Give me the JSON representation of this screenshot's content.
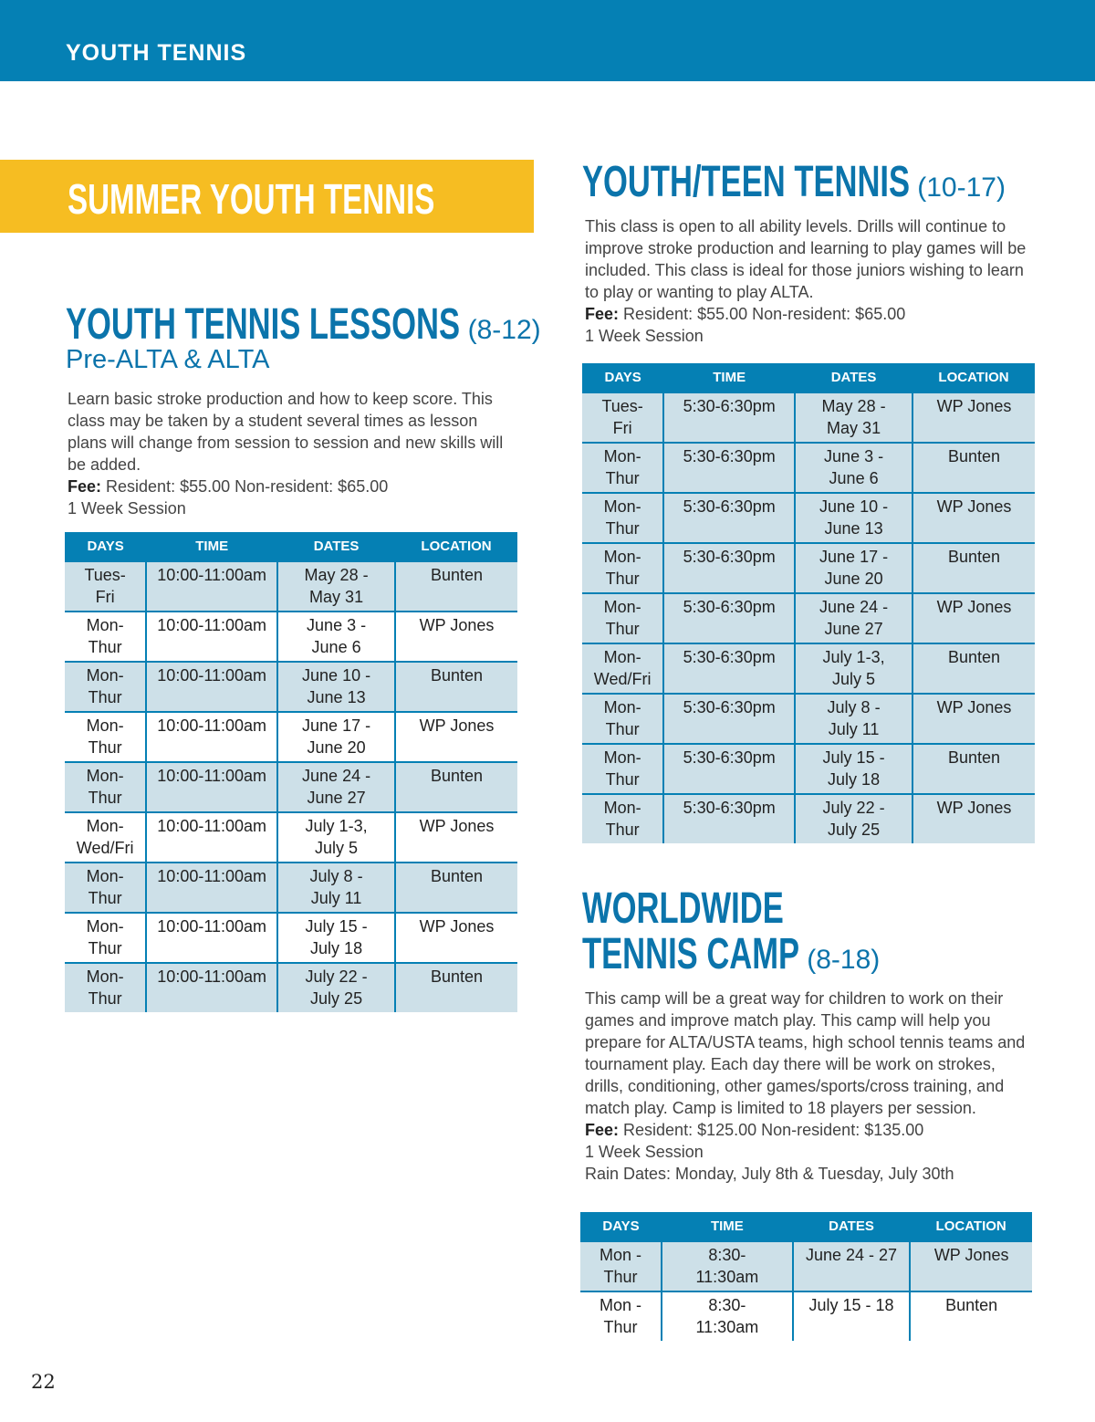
{
  "header": {
    "title": "YOUTH TENNIS"
  },
  "banner": {
    "title": "SUMMER YOUTH TENNIS"
  },
  "headers": [
    "DAYS",
    "TIME",
    "DATES",
    "LOCATION"
  ],
  "lessons": {
    "title": "YOUTH TENNIS LESSONS",
    "age": "(8-12)",
    "subtitle": "Pre-ALTA & ALTA",
    "description": "Learn basic stroke production and how to keep score. This class may be taken by a student several times as lesson plans will change from session to session and new skills will be added.",
    "fee_label": "Fee:",
    "fee": "Resident: $55.00 Non-resident: $65.00",
    "session": "1 Week Session",
    "rows": [
      [
        "Tues-\nFri",
        "10:00-11:00am",
        "May 28 -\nMay 31",
        "Bunten"
      ],
      [
        "Mon-\nThur",
        "10:00-11:00am",
        "June 3 -\nJune 6",
        "WP Jones"
      ],
      [
        "Mon-\nThur",
        "10:00-11:00am",
        "June 10 -\nJune 13",
        "Bunten"
      ],
      [
        "Mon-\nThur",
        "10:00-11:00am",
        "June 17 -\nJune 20",
        "WP Jones"
      ],
      [
        "Mon-\nThur",
        "10:00-11:00am",
        "June 24 -\nJune 27",
        "Bunten"
      ],
      [
        "Mon-\nWed/Fri",
        "10:00-11:00am",
        "July 1-3,\nJuly 5",
        "WP Jones"
      ],
      [
        "Mon-\nThur",
        "10:00-11:00am",
        "July 8 -\nJuly 11",
        "Bunten"
      ],
      [
        "Mon-\nThur",
        "10:00-11:00am",
        "July 15 -\nJuly 18",
        "WP Jones"
      ],
      [
        "Mon-\nThur",
        "10:00-11:00am",
        "July 22 -\nJuly 25",
        "Bunten"
      ]
    ]
  },
  "teen": {
    "title": "YOUTH/TEEN TENNIS",
    "age": "(10-17)",
    "description": "This class is open to all ability levels. Drills will continue to improve stroke production and learning to play games will be included. This class is ideal for those juniors wishing to learn to play or wanting to play ALTA.",
    "fee_label": "Fee:",
    "fee": "Resident: $55.00 Non-resident: $65.00",
    "session": "1 Week Session",
    "rows": [
      [
        "Tues-\nFri",
        "5:30-6:30pm",
        "May 28 -\nMay 31",
        "WP Jones"
      ],
      [
        "Mon-\nThur",
        "5:30-6:30pm",
        "June 3 -\nJune 6",
        "Bunten"
      ],
      [
        "Mon-\nThur",
        "5:30-6:30pm",
        "June 10 -\nJune 13",
        "WP Jones"
      ],
      [
        "Mon-\nThur",
        "5:30-6:30pm",
        "June 17 -\nJune 20",
        "Bunten"
      ],
      [
        "Mon-\nThur",
        "5:30-6:30pm",
        "June 24 -\nJune 27",
        "WP Jones"
      ],
      [
        "Mon-\nWed/Fri",
        "5:30-6:30pm",
        "July 1-3,\nJuly 5",
        "Bunten"
      ],
      [
        "Mon-\nThur",
        "5:30-6:30pm",
        "July 8 -\nJuly 11",
        "WP Jones"
      ],
      [
        "Mon-\nThur",
        "5:30-6:30pm",
        "July 15 -\nJuly 18",
        "Bunten"
      ],
      [
        "Mon-\nThur",
        "5:30-6:30pm",
        "July 22 -\nJuly 25",
        "WP Jones"
      ]
    ]
  },
  "camp": {
    "title_line1": "WORLDWIDE",
    "title_line2": "TENNIS CAMP",
    "age": "(8-18)",
    "description": "This camp will be a great way for children to work on their games and improve match play. This camp will help you prepare for ALTA/USTA teams, high school tennis teams and tournament play. Each day there will be work on strokes, drills, conditioning, other games/sports/cross training, and match play. Camp is limited to 18 players per session.",
    "fee_label": "Fee:",
    "fee": "Resident: $125.00 Non-resident: $135.00",
    "session": "1 Week Session",
    "rain_dates": "Rain Dates: Monday, July 8th & Tuesday, July 30th",
    "rows": [
      [
        "Mon -\nThur",
        "8:30-\n11:30am",
        "June 24 - 27",
        "WP Jones"
      ],
      [
        "Mon -\nThur",
        "8:30-\n11:30am",
        "July 15 - 18",
        "Bunten"
      ]
    ]
  },
  "page_number": "22"
}
